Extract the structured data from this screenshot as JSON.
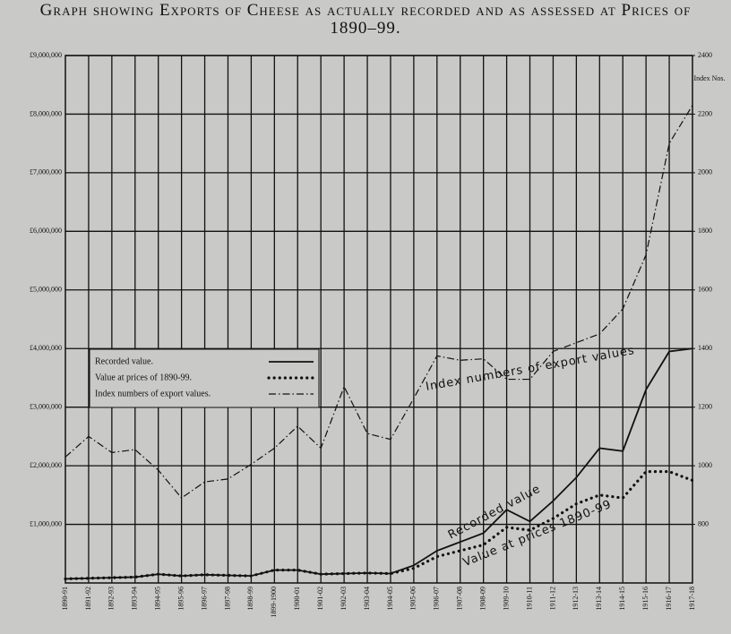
{
  "chart_data": {
    "type": "line",
    "title": "Graph showing Exports of Cheese as actually recorded and as assessed at Prices of 1890–99.",
    "y2_label": "Index Nos.",
    "categories": [
      "1890-91",
      "1891-92",
      "1892-93",
      "1893-94",
      "1894-95",
      "1895-96",
      "1896-97",
      "1897-98",
      "1898-99",
      "1899-1900",
      "1900-01",
      "1901-02",
      "1902-03",
      "1903-04",
      "1904-05",
      "1905-06",
      "1906-07",
      "1907-08",
      "1908-09",
      "1909-10",
      "1910-11",
      "1911-12",
      "1912-13",
      "1913-14",
      "1914-15",
      "1915-16",
      "1916-17",
      "1917-18"
    ],
    "series": [
      {
        "name": "Recorded value.",
        "color": "#111111",
        "style": "solid",
        "values": [
          70000,
          80000,
          90000,
          100000,
          150000,
          120000,
          140000,
          130000,
          120000,
          220000,
          220000,
          150000,
          160000,
          170000,
          160000,
          300000,
          550000,
          700000,
          850000,
          1250000,
          1050000,
          1400000,
          1800000,
          2300000,
          2250000,
          3300000,
          3950000,
          4000000
        ]
      },
      {
        "name": "Value at prices of 1890-99.",
        "color": "#111111",
        "style": "dotted",
        "values": [
          70000,
          80000,
          90000,
          100000,
          150000,
          120000,
          140000,
          130000,
          120000,
          220000,
          220000,
          150000,
          160000,
          170000,
          160000,
          250000,
          450000,
          550000,
          650000,
          950000,
          900000,
          1100000,
          1350000,
          1500000,
          1450000,
          1900000,
          1900000,
          1750000
        ]
      },
      {
        "name": "Index numbers of export values.",
        "color": "#111111",
        "style": "dashdot",
        "axis": "y2",
        "values": [
          1030,
          1100,
          1045,
          1055,
          985,
          890,
          945,
          955,
          1005,
          1060,
          1135,
          1060,
          1270,
          1110,
          1090,
          1230,
          1375,
          1360,
          1365,
          1295,
          1295,
          1390,
          1420,
          1450,
          1535,
          1720,
          2100,
          2230
        ]
      }
    ],
    "annotations": [
      "Index numbers of export values",
      "Recorded value",
      "Value at prices 1890-99"
    ],
    "ylim": [
      0,
      9000000
    ],
    "yticks": [
      {
        "value": 1000000,
        "label": "£1,000,000"
      },
      {
        "value": 2000000,
        "label": "£2,000,000"
      },
      {
        "value": 3000000,
        "label": "£3,000,000"
      },
      {
        "value": 4000000,
        "label": "£4,000,000"
      },
      {
        "value": 5000000,
        "label": "£5,000,000"
      },
      {
        "value": 6000000,
        "label": "£6,000,000"
      },
      {
        "value": 7000000,
        "label": "£7,000,000"
      },
      {
        "value": 8000000,
        "label": "£8,000,000"
      },
      {
        "value": 9000000,
        "label": "£9,000,000"
      }
    ],
    "y2lim": [
      600,
      2400
    ],
    "y2ticks": [
      800,
      1000,
      1200,
      1400,
      1600,
      1800,
      2000,
      2200,
      2400
    ],
    "grid": true
  }
}
